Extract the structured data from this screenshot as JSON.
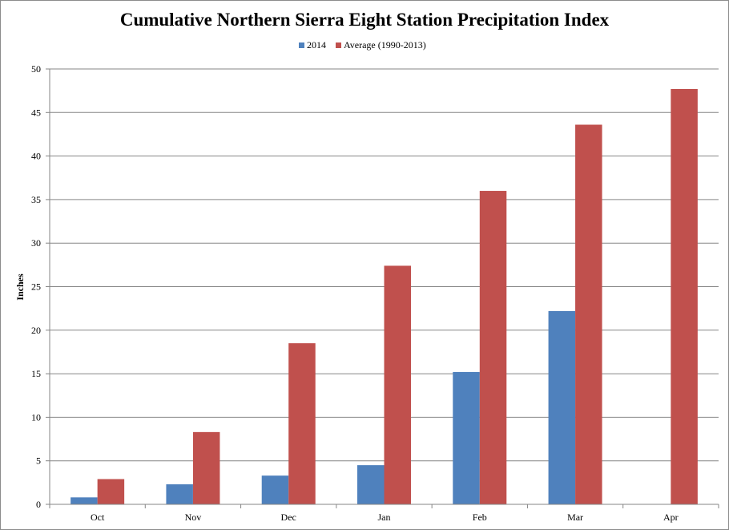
{
  "chart_data": {
    "type": "bar",
    "title": "Cumulative Northern Sierra Eight Station Precipitation Index",
    "xlabel": "",
    "ylabel": "Inches",
    "ylim": [
      0,
      50
    ],
    "ytick_step": 5,
    "grid": true,
    "legend_position": "top-center",
    "categories": [
      "Oct",
      "Nov",
      "Dec",
      "Jan",
      "Feb",
      "Mar",
      "Apr"
    ],
    "series": [
      {
        "name": "2014",
        "color": "#4f81bd",
        "values": [
          0.8,
          2.3,
          3.3,
          4.5,
          15.2,
          22.2,
          null
        ]
      },
      {
        "name": "Average (1990-2013)",
        "color": "#c0504d",
        "values": [
          2.9,
          8.3,
          18.5,
          27.4,
          36.0,
          43.6,
          47.7
        ]
      }
    ]
  }
}
